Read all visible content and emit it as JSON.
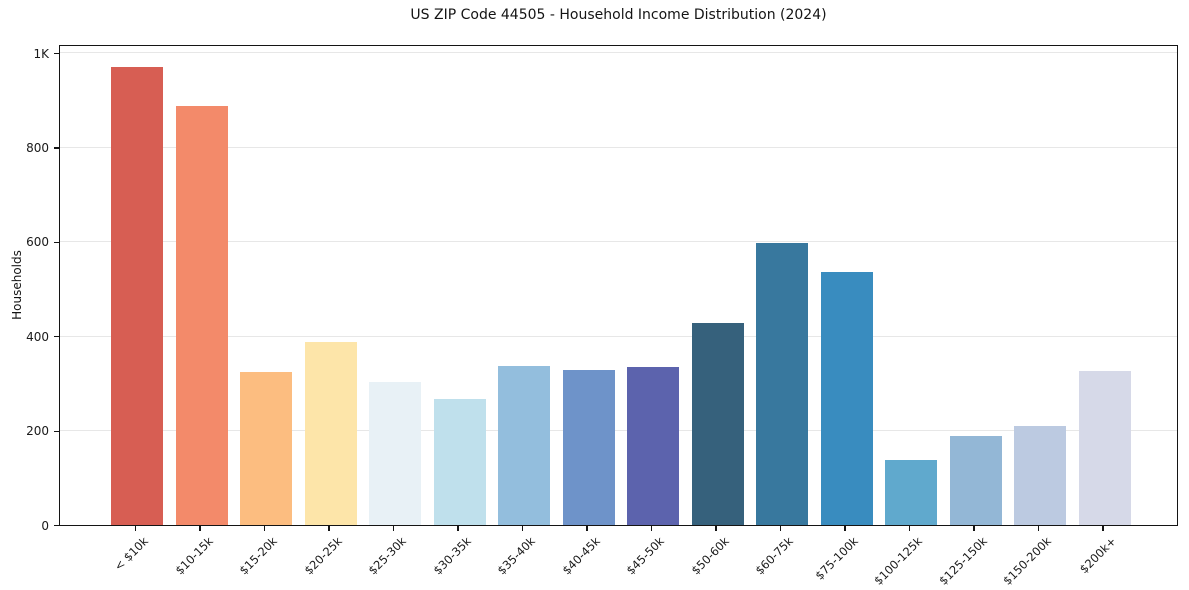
{
  "chart_data": {
    "type": "bar",
    "title": "US ZIP Code 44505 - Household Income Distribution (2024)",
    "xlabel": "",
    "ylabel": "Households",
    "categories": [
      "< $10k",
      "$10-15k",
      "$15-20k",
      "$20-25k",
      "$25-30k",
      "$30-35k",
      "$35-40k",
      "$40-45k",
      "$45-50k",
      "$50-60k",
      "$60-75k",
      "$75-100k",
      "$100-125k",
      "$125-150k",
      "$150-200k",
      "$200k+"
    ],
    "values": [
      970,
      887,
      325,
      387,
      304,
      266,
      337,
      328,
      335,
      428,
      597,
      536,
      137,
      189,
      209,
      326
    ],
    "bar_colors": [
      "#d75e53",
      "#f38a6a",
      "#fcbd80",
      "#fde5a9",
      "#e8f1f6",
      "#bfe0ec",
      "#93bedd",
      "#6e93c9",
      "#5c63ad",
      "#36617c",
      "#38789e",
      "#398cbf",
      "#60a9cd",
      "#93b7d6",
      "#bccae1",
      "#d6d9e8"
    ],
    "ylim": [
      0,
      1019
    ],
    "yticks": [
      {
        "value": 0,
        "label": "0"
      },
      {
        "value": 200,
        "label": "200"
      },
      {
        "value": 400,
        "label": "400"
      },
      {
        "value": 600,
        "label": "600"
      },
      {
        "value": 800,
        "label": "800"
      },
      {
        "value": 1000,
        "label": "1K"
      }
    ],
    "grid": "horizontal",
    "legend": "none",
    "colors": {
      "background": "#ffffff",
      "spine": "#141414",
      "grid": "#e7e7e7",
      "tick": "#141414",
      "text": "#1a1a1a"
    }
  }
}
